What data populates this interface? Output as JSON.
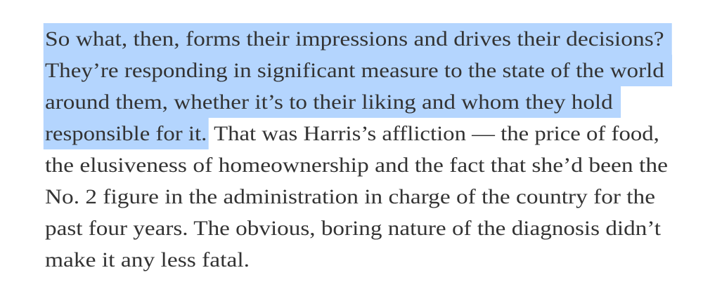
{
  "article": {
    "paragraph": {
      "lines": [
        {
          "selected": "So what, then, forms their impressions and drives their decisions?",
          "rest": ""
        },
        {
          "selected": "They’re responding in significant measure to the state of the world",
          "rest": ""
        },
        {
          "selected": "around them, whether it’s to their liking and whom they hold",
          "rest": ""
        },
        {
          "selected": "responsible for it.",
          "rest": " That was Harris’s affliction — the price of food,"
        },
        {
          "selected": "",
          "rest": "the elusiveness of homeownership and the fact that she’d been the"
        },
        {
          "selected": "",
          "rest": "No. 2 figure in the administration in charge of the country for the"
        },
        {
          "selected": "",
          "rest": "past four years. The obvious, boring nature of the diagnosis didn’t"
        },
        {
          "selected": "",
          "rest": "make it any less fatal."
        }
      ]
    },
    "selection_color": "#b4d5fe",
    "text_color": "#333333"
  }
}
